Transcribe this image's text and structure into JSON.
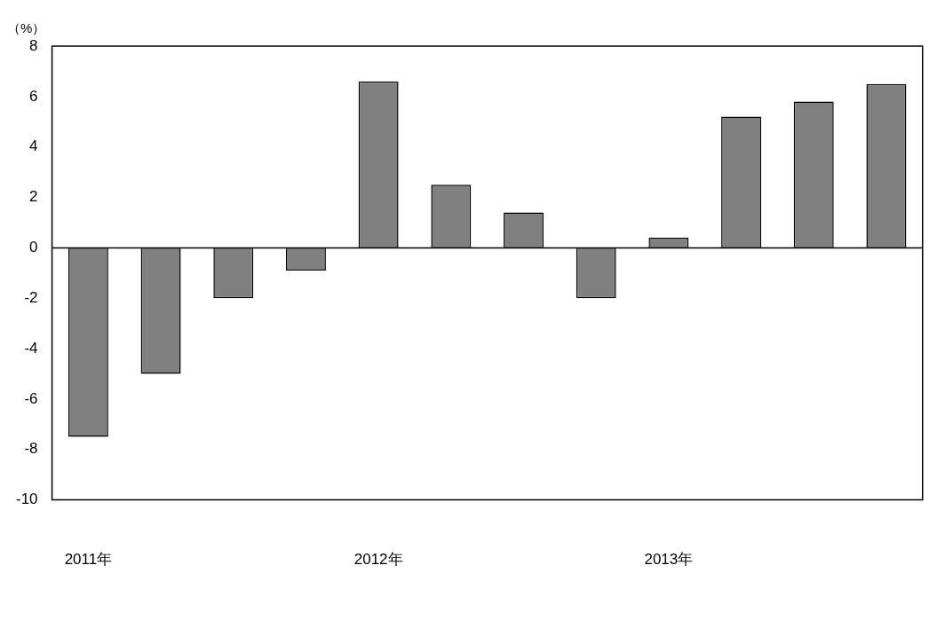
{
  "chart_data": {
    "type": "bar",
    "ylabel": "（%）",
    "categories": [
      "2011年",
      null,
      null,
      null,
      "2012年",
      null,
      null,
      null,
      "2013年",
      null,
      null,
      null
    ],
    "values": [
      -7.5,
      -5.0,
      -2.0,
      -0.9,
      6.6,
      2.5,
      1.4,
      -2.0,
      0.4,
      5.2,
      5.8,
      6.5
    ],
    "color": "#808080",
    "ylim": [
      -10,
      8
    ],
    "yticks": [
      -10,
      -8,
      -6,
      -4,
      -2,
      0,
      2,
      4,
      6,
      8
    ],
    "legend": false
  }
}
